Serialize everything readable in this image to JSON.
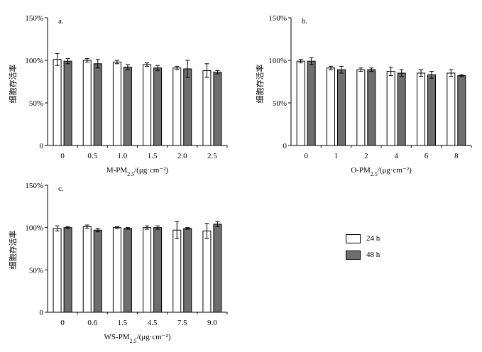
{
  "colors": {
    "series_24h": "#ffffff",
    "series_48h": "#6e6e6e",
    "axis": "#000000"
  },
  "legend": [
    {
      "name": "24 h",
      "color": "#ffffff"
    },
    {
      "name": "48 h",
      "color": "#6e6e6e"
    }
  ],
  "chart_data": [
    {
      "type": "bar",
      "panel": "a.",
      "ylabel": "细胞存活率",
      "xlabel_main": "M-PM",
      "xlabel_sub": "2.5",
      "xlabel_unit": "/(μg·cm⁻²)",
      "yticks": [
        "0",
        "50%",
        "100%",
        "150%"
      ],
      "ylim": [
        0,
        150
      ],
      "categories": [
        "0",
        "0.5",
        "1.0",
        "1.5",
        "2.0",
        "2.5"
      ],
      "series": [
        {
          "name": "24 h",
          "values": [
            101,
            100,
            98,
            95,
            91,
            88
          ],
          "errors": [
            7,
            2,
            2,
            2,
            2,
            8
          ]
        },
        {
          "name": "48 h",
          "values": [
            99,
            96,
            92,
            91,
            90,
            86
          ],
          "errors": [
            3,
            5,
            3,
            3,
            10,
            2
          ]
        }
      ]
    },
    {
      "type": "bar",
      "panel": "b.",
      "ylabel": "细胞存活率",
      "xlabel_main": "O-PM",
      "xlabel_sub": "2.5",
      "xlabel_unit": "/(μg·cm⁻²)",
      "yticks": [
        "0",
        "50%",
        "100%",
        "150%"
      ],
      "ylim": [
        0,
        150
      ],
      "categories": [
        "0",
        "1",
        "2",
        "4",
        "6",
        "8"
      ],
      "series": [
        {
          "name": "24 h",
          "values": [
            99,
            91,
            89,
            87,
            85,
            85
          ],
          "errors": [
            2,
            2,
            2,
            5,
            4,
            4
          ]
        },
        {
          "name": "48 h",
          "values": [
            99,
            89,
            89,
            85,
            83,
            82
          ],
          "errors": [
            4,
            4,
            2,
            4,
            4,
            1
          ]
        }
      ]
    },
    {
      "type": "bar",
      "panel": "c.",
      "ylabel": "细胞存活率",
      "xlabel_main": "WS-PM",
      "xlabel_sub": "2.5",
      "xlabel_unit": "/(μg·cm⁻²)",
      "yticks": [
        "0",
        "50%",
        "100%",
        "150%"
      ],
      "ylim": [
        0,
        150
      ],
      "categories": [
        "0",
        "0.6",
        "1.5",
        "4.5",
        "7.5",
        "9.0"
      ],
      "series": [
        {
          "name": "24 h",
          "values": [
            99,
            101,
            100,
            100,
            97,
            96
          ],
          "errors": [
            3,
            2,
            1,
            2,
            10,
            9
          ]
        },
        {
          "name": "48 h",
          "values": [
            100,
            97,
            99,
            100,
            99,
            104
          ],
          "errors": [
            1,
            2,
            1,
            2,
            1,
            3
          ]
        }
      ]
    }
  ]
}
